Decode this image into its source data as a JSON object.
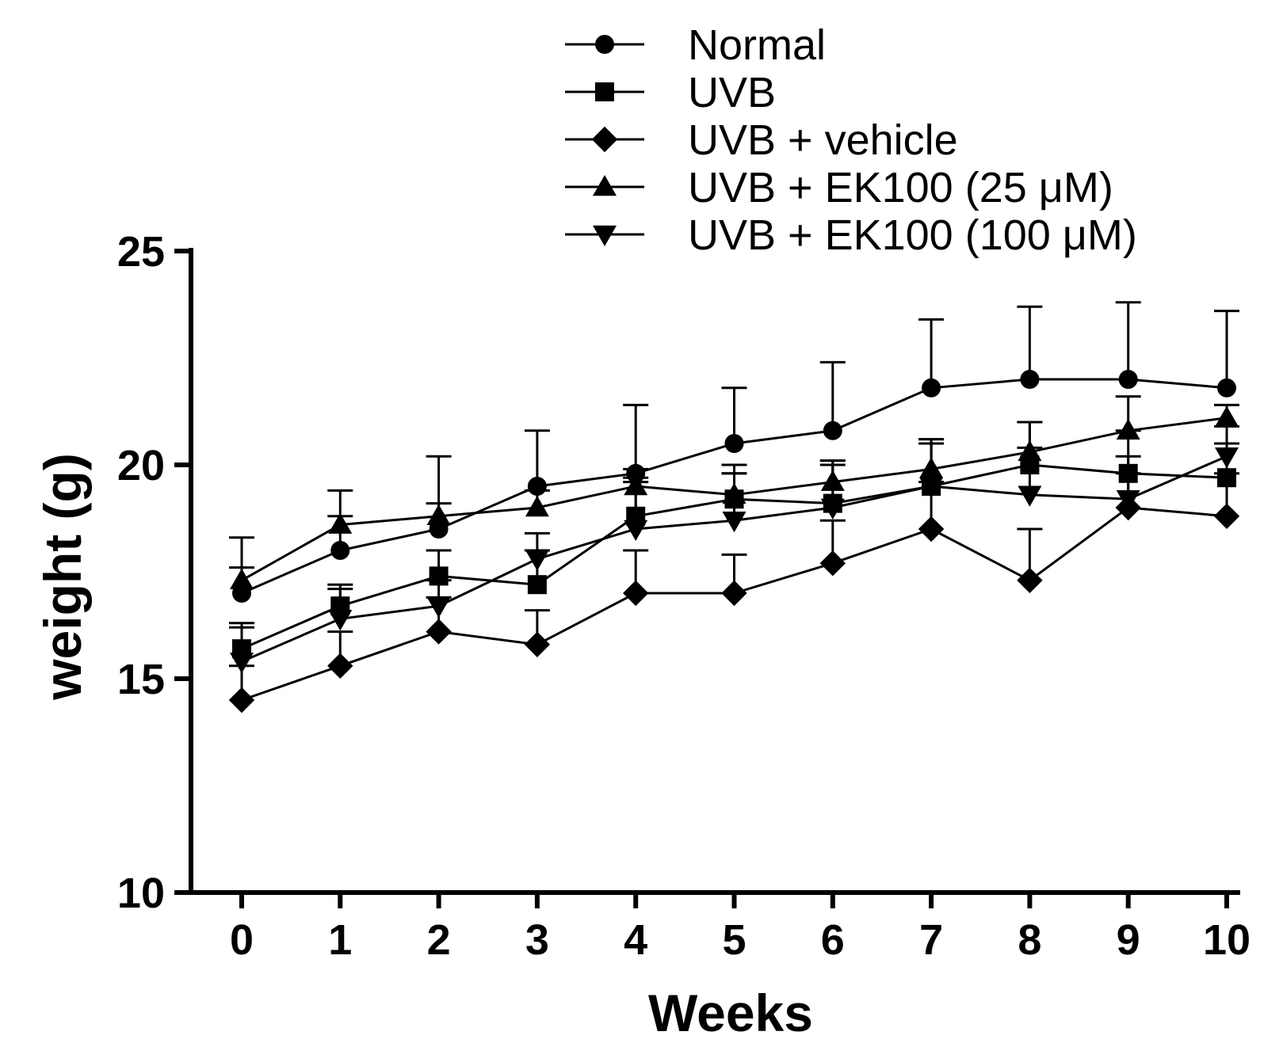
{
  "chart_data": {
    "type": "line",
    "title": "",
    "xlabel": "Weeks",
    "ylabel": "weight (g)",
    "x": [
      0,
      1,
      2,
      3,
      4,
      5,
      6,
      7,
      8,
      9,
      10
    ],
    "xlim": [
      0,
      10
    ],
    "ylim": [
      10,
      25
    ],
    "xticks": [
      "0",
      "1",
      "2",
      "3",
      "4",
      "5",
      "6",
      "7",
      "8",
      "9",
      "10"
    ],
    "yticks": [
      "10",
      "15",
      "20",
      "25"
    ],
    "ytick_values": [
      10,
      15,
      20,
      25
    ],
    "grid": false,
    "legend_position": "top-right",
    "series": [
      {
        "name": "Normal",
        "marker": "circle",
        "values": [
          17.0,
          18.0,
          18.5,
          19.5,
          19.8,
          20.5,
          20.8,
          21.8,
          22.0,
          22.0,
          21.8
        ],
        "errors": [
          1.3,
          1.4,
          1.7,
          1.3,
          1.6,
          1.3,
          1.6,
          1.6,
          1.7,
          1.8,
          1.8
        ]
      },
      {
        "name": "UVB",
        "marker": "square",
        "values": [
          15.7,
          16.7,
          17.4,
          17.2,
          18.8,
          19.2,
          19.1,
          19.5,
          20.0,
          19.8,
          19.7
        ],
        "errors": [
          0.6,
          0.5,
          0.6,
          0.8,
          0.9,
          0.8,
          0.9,
          1.1,
          1.0,
          1.0,
          0.8
        ]
      },
      {
        "name": "UVB + vehicle",
        "marker": "diamond",
        "values": [
          14.5,
          15.3,
          16.1,
          15.8,
          17.0,
          17.0,
          17.7,
          18.5,
          17.3,
          19.0,
          18.8
        ],
        "errors": [
          0.8,
          0.8,
          0.8,
          0.8,
          1.0,
          0.9,
          1.0,
          1.1,
          1.2,
          0.8,
          1.0
        ]
      },
      {
        "name": "UVB + EK100 (25 μM)",
        "marker": "triangle-up",
        "values": [
          17.3,
          18.6,
          18.8,
          19.0,
          19.5,
          19.3,
          19.6,
          19.9,
          20.3,
          20.8,
          21.1
        ],
        "errors": [
          0.3,
          0.2,
          0.3,
          0.4,
          0.4,
          0.5,
          0.5,
          0.6,
          0.7,
          0.8,
          0.3
        ]
      },
      {
        "name": "UVB + EK100 (100 μM)",
        "marker": "triangle-down",
        "values": [
          15.4,
          16.4,
          16.7,
          17.8,
          18.5,
          18.7,
          19.0,
          19.5,
          19.3,
          19.2,
          20.2
        ],
        "errors": [
          0.8,
          0.7,
          0.6,
          0.6,
          1.1,
          1.1,
          1.1,
          1.1,
          1.1,
          1.0,
          0.7
        ]
      }
    ]
  }
}
